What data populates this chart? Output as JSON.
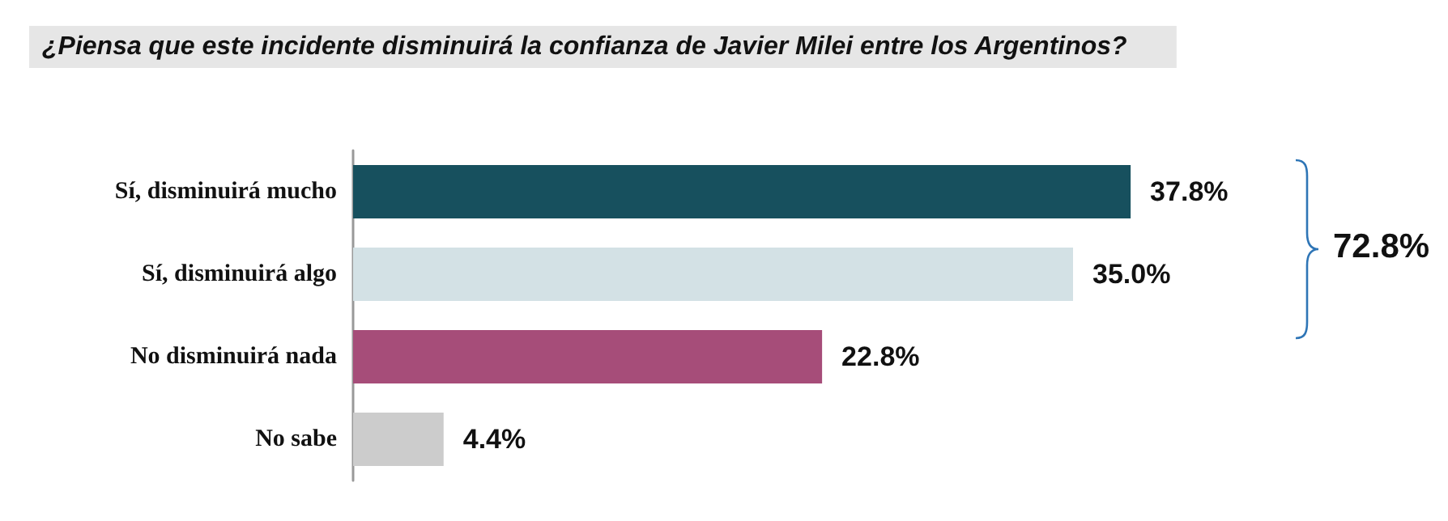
{
  "chart_data": {
    "type": "bar",
    "orientation": "horizontal",
    "title": "¿Piensa que este incidente disminuirá la confianza de Javier Milei entre los Argentinos?",
    "categories": [
      "Sí, disminuirá mucho",
      "Sí, disminuirá algo",
      "No disminuirá nada",
      "No sabe"
    ],
    "values": [
      37.8,
      35.0,
      22.8,
      4.4
    ],
    "colors": [
      "#17505e",
      "#d3e1e5",
      "#a64d79",
      "#cccccc"
    ],
    "value_labels": [
      "37.8%",
      "35.0%",
      "22.8%",
      "4.4%"
    ],
    "annotations": [
      "72.8%"
    ]
  }
}
